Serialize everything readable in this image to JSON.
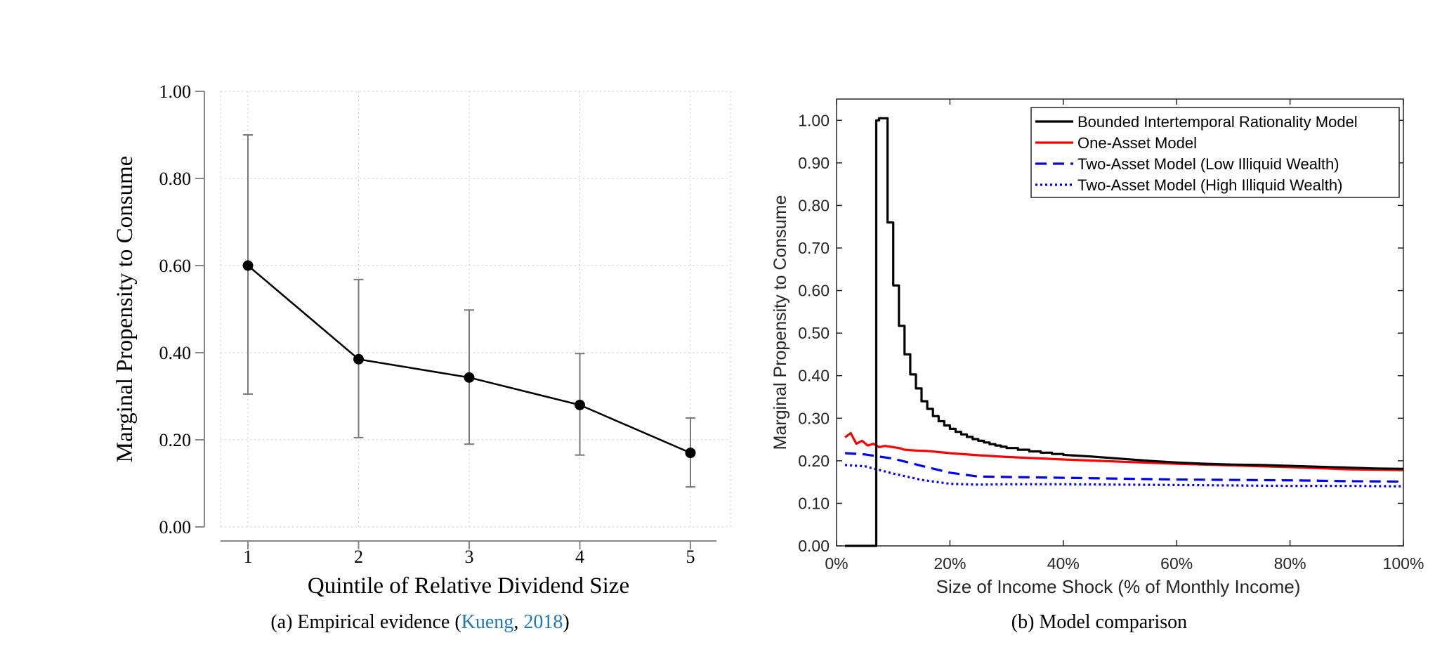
{
  "chart_data": [
    {
      "type": "line",
      "title": "",
      "xlabel": "Quintile of Relative Dividend Size",
      "ylabel": "Marginal Propensity to Consume",
      "x_ticks": [
        "1",
        "2",
        "3",
        "4",
        "5"
      ],
      "y_ticks": [
        "0.00",
        "0.20",
        "0.40",
        "0.60",
        "0.80",
        "1.00"
      ],
      "ylim": [
        0,
        1
      ],
      "grid": true,
      "error_bars": true,
      "series": [
        {
          "x": [
            1,
            2,
            3,
            4,
            5
          ],
          "values": [
            0.6,
            0.385,
            0.343,
            0.28,
            0.17
          ],
          "ci_low": [
            0.305,
            0.205,
            0.19,
            0.165,
            0.092
          ],
          "ci_high": [
            0.9,
            0.568,
            0.498,
            0.398,
            0.25
          ],
          "color": "#000000"
        }
      ],
      "caption": {
        "prefix": "(a)  Empirical evidence (",
        "cite_author": "Kueng",
        "cite_sep": ", ",
        "cite_year": "2018",
        "suffix": ")",
        "link_color": "#1f77b4"
      }
    },
    {
      "type": "line",
      "title": "",
      "xlabel": "Size of Income Shock (% of Monthly Income)",
      "ylabel": "Marginal Propensity to Consume",
      "x_ticks": [
        "0%",
        "20%",
        "40%",
        "60%",
        "80%",
        "100%"
      ],
      "y_ticks": [
        "0.00",
        "0.10",
        "0.20",
        "0.30",
        "0.40",
        "0.50",
        "0.60",
        "0.70",
        "0.80",
        "0.90",
        "1.00"
      ],
      "xlim": [
        0,
        100
      ],
      "ylim": [
        0,
        1.05
      ],
      "grid": false,
      "legend_position": "top-right",
      "series": [
        {
          "name": "Bounded Intertemporal Rationality Model",
          "color": "#000000",
          "style": "solid",
          "x": [
            1.5,
            1.5,
            7,
            7,
            7.5,
            7.5,
            9,
            9,
            10,
            10,
            11,
            11,
            12,
            12,
            13,
            13,
            14,
            14,
            15,
            15,
            16,
            16,
            17,
            17,
            18,
            18,
            19,
            19,
            20,
            20,
            21,
            21,
            22,
            22,
            23,
            23,
            24,
            24,
            25,
            25,
            26,
            26,
            27,
            27,
            28,
            28,
            29,
            29,
            30,
            30,
            32,
            32,
            34,
            34,
            36,
            36,
            38,
            38,
            40,
            40,
            45,
            50,
            55,
            60,
            65,
            70,
            75,
            80,
            85,
            90,
            95,
            100
          ],
          "values": [
            0,
            0,
            0,
            1.0,
            1.0,
            1.005,
            1.005,
            0.76,
            0.76,
            0.612,
            0.612,
            0.517,
            0.517,
            0.45,
            0.45,
            0.403,
            0.403,
            0.37,
            0.37,
            0.34,
            0.34,
            0.322,
            0.322,
            0.305,
            0.305,
            0.293,
            0.293,
            0.283,
            0.283,
            0.275,
            0.275,
            0.268,
            0.268,
            0.262,
            0.262,
            0.256,
            0.256,
            0.251,
            0.251,
            0.247,
            0.247,
            0.243,
            0.243,
            0.239,
            0.239,
            0.236,
            0.236,
            0.233,
            0.233,
            0.23,
            0.23,
            0.226,
            0.226,
            0.222,
            0.222,
            0.219,
            0.219,
            0.216,
            0.216,
            0.214,
            0.21,
            0.205,
            0.2,
            0.196,
            0.193,
            0.191,
            0.19,
            0.188,
            0.186,
            0.184,
            0.182,
            0.181
          ]
        },
        {
          "name": "One-Asset Model",
          "color": "#ff0000",
          "style": "solid",
          "x": [
            1.5,
            2.5,
            3.5,
            4.5,
            5.5,
            6.5,
            7.5,
            8.5,
            10,
            11,
            12,
            14,
            16,
            20,
            25,
            30,
            40,
            50,
            60,
            70,
            80,
            90,
            100
          ],
          "values": [
            0.255,
            0.265,
            0.24,
            0.247,
            0.236,
            0.24,
            0.232,
            0.235,
            0.232,
            0.23,
            0.226,
            0.224,
            0.223,
            0.218,
            0.213,
            0.209,
            0.203,
            0.198,
            0.193,
            0.189,
            0.185,
            0.18,
            0.178
          ]
        },
        {
          "name": "Two-Asset Model (Low Illiquid Wealth)",
          "color": "#0000ff",
          "style": "dashed",
          "x": [
            1.5,
            5,
            10,
            15,
            20,
            25,
            30,
            40,
            50,
            60,
            70,
            80,
            90,
            100
          ],
          "values": [
            0.218,
            0.215,
            0.205,
            0.188,
            0.172,
            0.163,
            0.162,
            0.16,
            0.158,
            0.156,
            0.155,
            0.154,
            0.152,
            0.151
          ]
        },
        {
          "name": "Two-Asset Model (High Illiquid Wealth)",
          "color": "#0000ff",
          "style": "dotted",
          "x": [
            1.5,
            5,
            10,
            15,
            20,
            25,
            30,
            40,
            50,
            60,
            70,
            80,
            90,
            100
          ],
          "values": [
            0.19,
            0.187,
            0.17,
            0.155,
            0.146,
            0.144,
            0.145,
            0.145,
            0.144,
            0.143,
            0.142,
            0.141,
            0.141,
            0.14
          ]
        }
      ],
      "caption": "(b)  Model comparison"
    }
  ]
}
